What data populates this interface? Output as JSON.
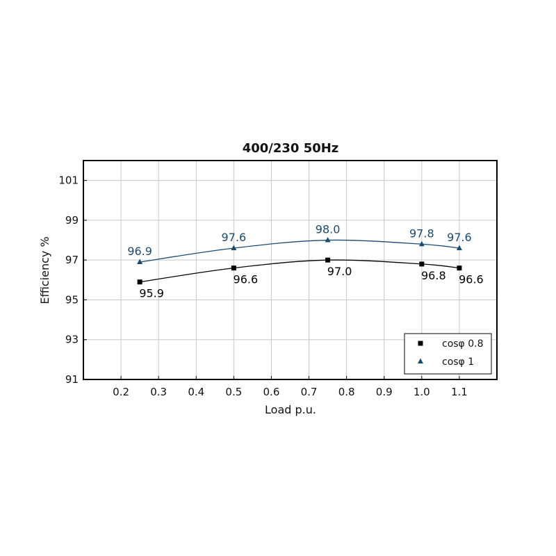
{
  "chart_data": {
    "type": "line",
    "title": "400/230 50Hz",
    "xlabel": "Load p.u.",
    "ylabel": "Efficiency %",
    "xlim": [
      0.1,
      1.2
    ],
    "ylim": [
      91,
      102
    ],
    "xticks": [
      0.2,
      0.3,
      0.4,
      0.5,
      0.6,
      0.7,
      0.8,
      0.9,
      1.0,
      1.1
    ],
    "xtick_labels": [
      "0.2",
      "0.3",
      "0.4",
      "0.5",
      "0.6",
      "0.7",
      "0.8",
      "0.9",
      "1.0",
      "1.1"
    ],
    "yticks": [
      91,
      93,
      95,
      97,
      99,
      101
    ],
    "ytick_labels": [
      "91",
      "93",
      "95",
      "97",
      "99",
      "101"
    ],
    "grid": true,
    "legend_position": "bottom-right",
    "series": [
      {
        "name": "cosφ 0.8",
        "marker": "square",
        "color": "#000000",
        "x": [
          0.25,
          0.5,
          0.75,
          1.0,
          1.1
        ],
        "y": [
          95.9,
          96.6,
          97.0,
          96.8,
          96.6
        ],
        "labels": [
          "95.9",
          "96.6",
          "97.0",
          "96.8",
          "96.6"
        ],
        "label_position": "below"
      },
      {
        "name": "cosφ 1",
        "marker": "triangle",
        "color": "#1a4a72",
        "x": [
          0.25,
          0.5,
          0.75,
          1.0,
          1.1
        ],
        "y": [
          96.9,
          97.6,
          98.0,
          97.8,
          97.6
        ],
        "labels": [
          "96.9",
          "97.6",
          "98.0",
          "97.8",
          "97.6"
        ],
        "label_position": "above"
      }
    ]
  }
}
